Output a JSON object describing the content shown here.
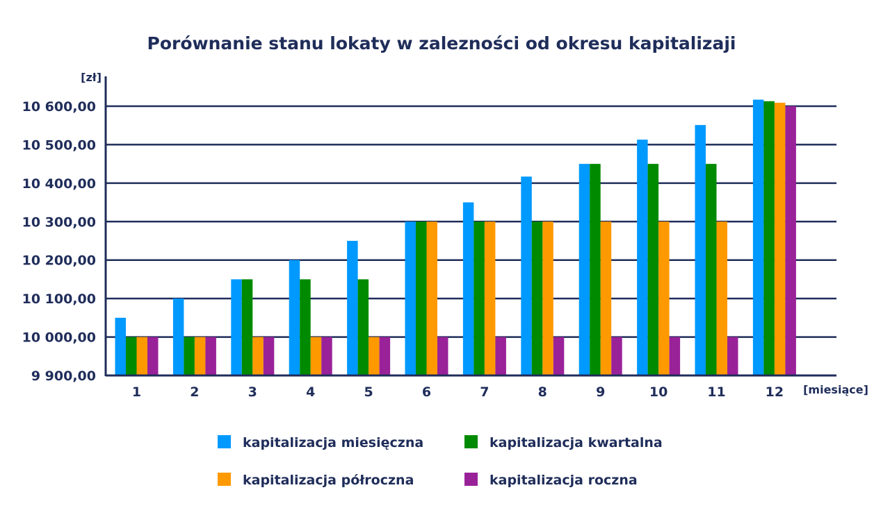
{
  "chart_data": {
    "type": "bar",
    "title": "Porównanie stanu lokaty w zalezności od okresu kapitalizaji",
    "ylabel": "[zł]",
    "xlabel": "[miesiące]",
    "ylim": [
      9900,
      10600
    ],
    "yticks": [
      9900,
      10000,
      10100,
      10200,
      10300,
      10400,
      10500,
      10600
    ],
    "ytick_labels": [
      "9 900,00",
      "10 000,00",
      "10 100,00",
      "10 200,00",
      "10 300,00",
      "10 400,00",
      "10 500,00",
      "10 600,00"
    ],
    "categories": [
      "1",
      "2",
      "3",
      "4",
      "5",
      "6",
      "7",
      "8",
      "9",
      "10",
      "11",
      "12"
    ],
    "grid": true,
    "legend_position": "bottom",
    "series": [
      {
        "name": "kapitalizacja miesięczna",
        "color": "#0099ff",
        "values": [
          10050,
          10100,
          10150,
          10200,
          10250,
          10300,
          10350,
          10417,
          10450,
          10513,
          10551,
          10617
        ]
      },
      {
        "name": "kapitalizacja kwartalna",
        "color": "#008a00",
        "values": [
          10000,
          10000,
          10150,
          10150,
          10150,
          10300,
          10300,
          10300,
          10450,
          10450,
          10450,
          10613
        ]
      },
      {
        "name": "kapitalizacja półroczna",
        "color": "#ff9900",
        "values": [
          10000,
          10000,
          10000,
          10000,
          10000,
          10300,
          10300,
          10300,
          10300,
          10300,
          10300,
          10609
        ]
      },
      {
        "name": "kapitalizacja roczna",
        "color": "#992299",
        "values": [
          10000,
          10000,
          10000,
          10000,
          10000,
          10000,
          10000,
          10000,
          10000,
          10000,
          10000,
          10600
        ]
      }
    ]
  }
}
